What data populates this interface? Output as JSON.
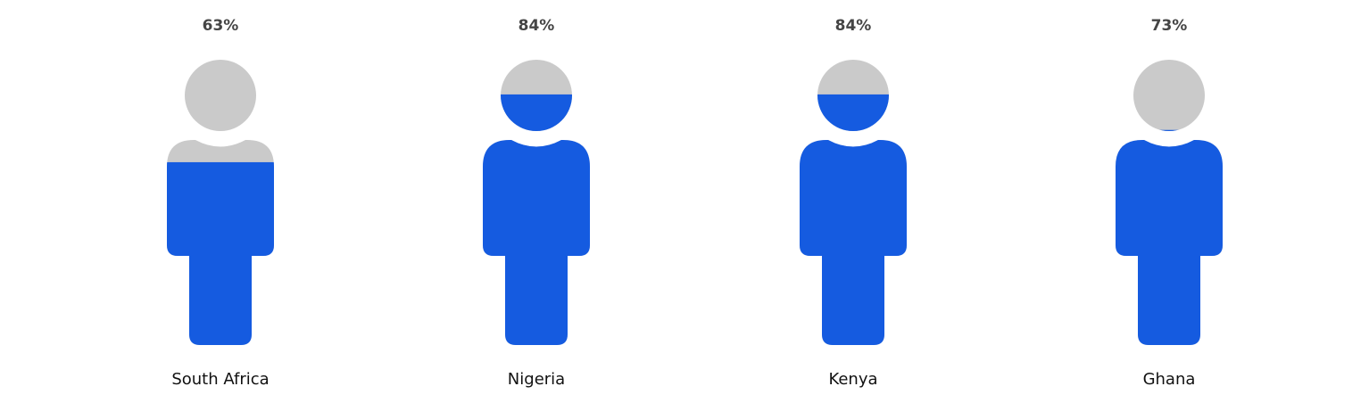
{
  "chart_data": {
    "type": "pictograph",
    "categories": [
      "South Africa",
      "Nigeria",
      "Kenya",
      "Ghana"
    ],
    "values": [
      63,
      84,
      84,
      73
    ],
    "value_labels": [
      "63%",
      "84%",
      "84%",
      "73%"
    ],
    "unit": "%",
    "colors": {
      "fill": "#155BE0",
      "empty": "#CACACA",
      "value_text": "#454545",
      "category_text": "#111111"
    }
  }
}
